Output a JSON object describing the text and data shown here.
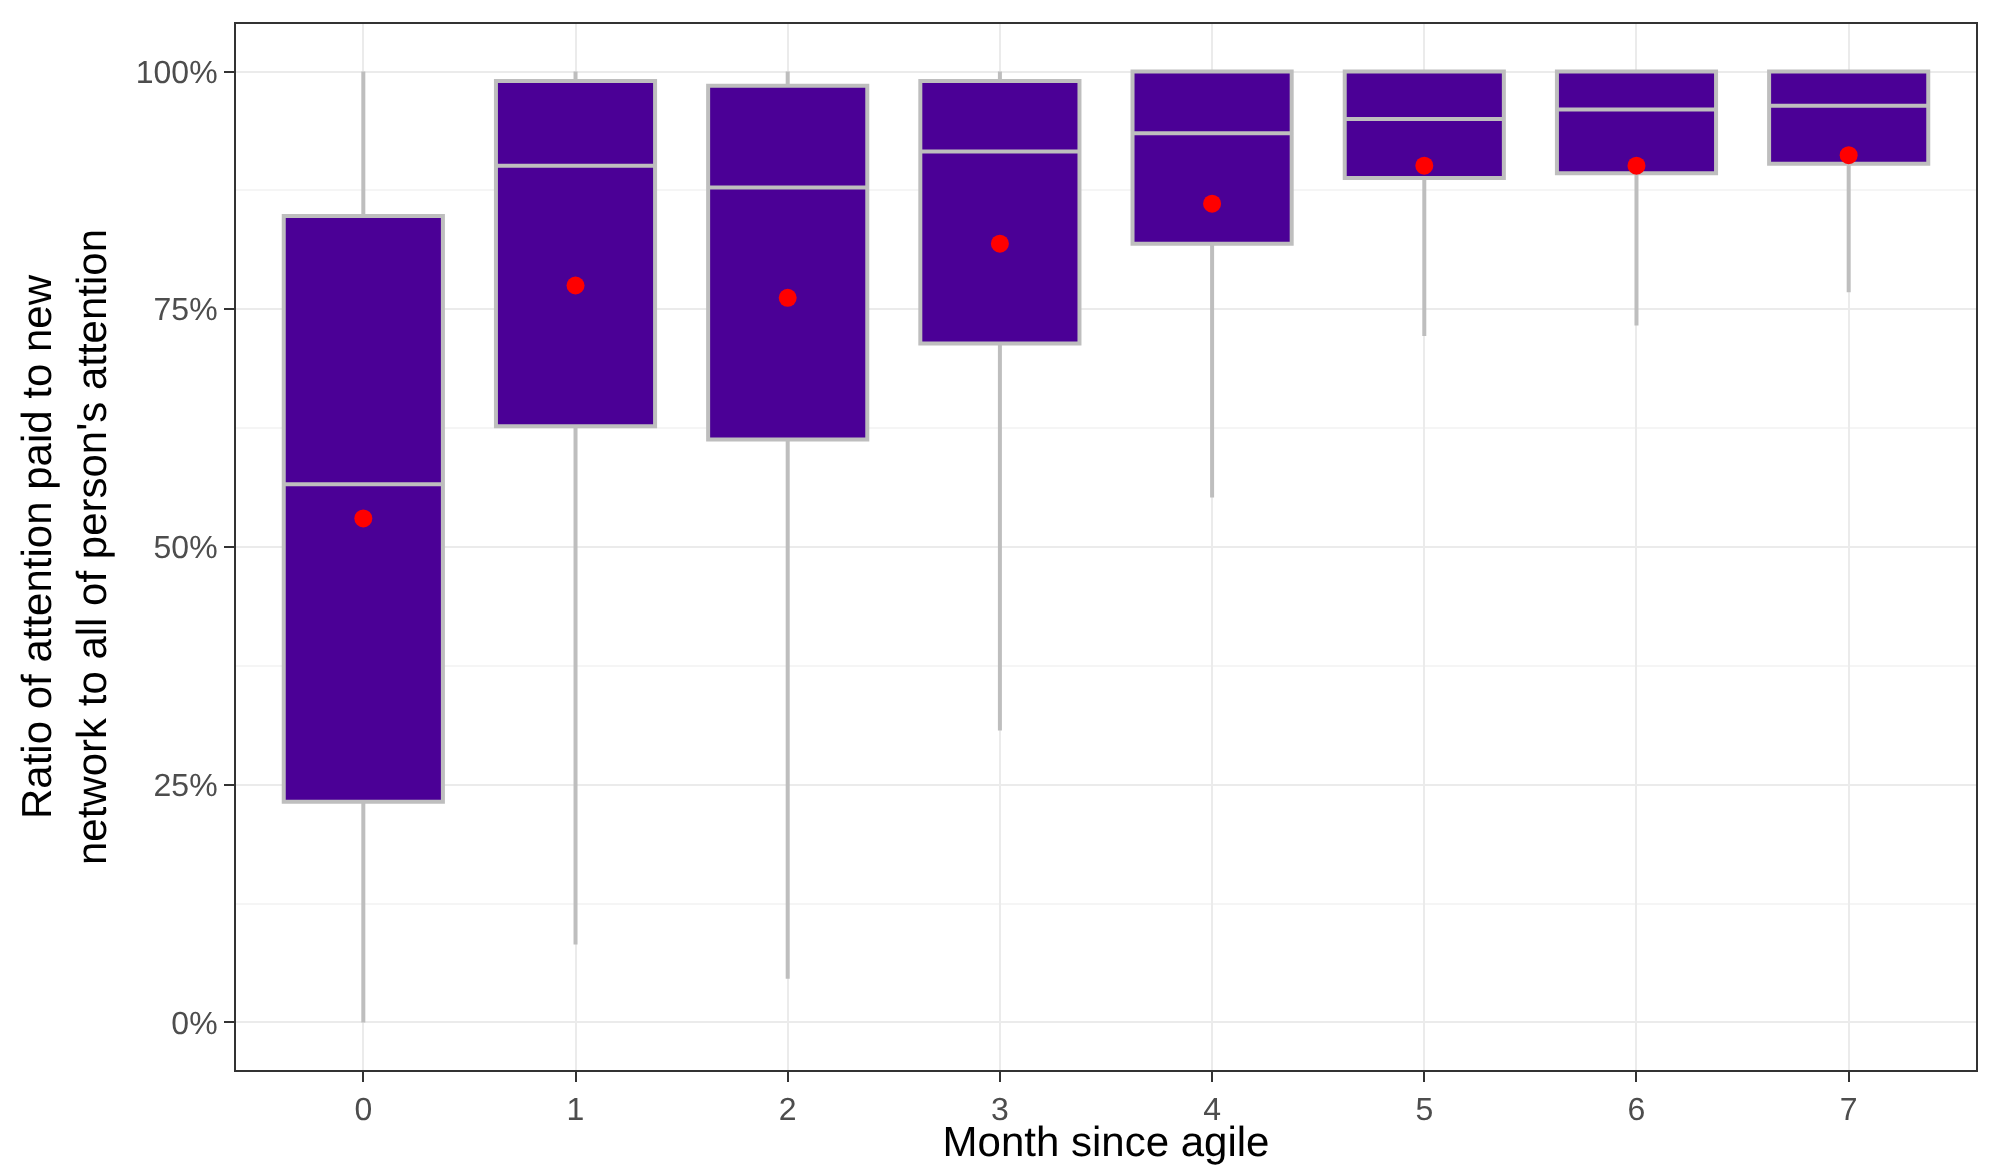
{
  "chart_data": {
    "type": "box",
    "xlabel": "Month since agile",
    "ylabel": "Ratio of attention paid to new\nnetwork to all of person's attention",
    "categories": [
      "0",
      "1",
      "2",
      "3",
      "4",
      "5",
      "6",
      "7"
    ],
    "series": [
      {
        "color": "#4b0096",
        "boxes": [
          {
            "low": 0,
            "q1": 23.2,
            "median": 56.6,
            "q3": 84.8,
            "high": 100
          },
          {
            "low": 8.2,
            "q1": 62.7,
            "median": 90.1,
            "q3": 99,
            "high": 100
          },
          {
            "low": 4.6,
            "q1": 61.3,
            "median": 87.8,
            "q3": 98.5,
            "high": 100
          },
          {
            "low": 30.7,
            "q1": 71.4,
            "median": 91.6,
            "q3": 99,
            "high": 100
          },
          {
            "low": 55.2,
            "q1": 81.9,
            "median": 93.5,
            "q3": 100,
            "high": 100
          },
          {
            "low": 72.2,
            "q1": 88.8,
            "median": 95,
            "q3": 100,
            "high": 100
          },
          {
            "low": 73.3,
            "q1": 89.3,
            "median": 96,
            "q3": 100,
            "high": 100
          },
          {
            "low": 76.8,
            "q1": 90.3,
            "median": 96.4,
            "q3": 100,
            "high": 100
          }
        ]
      },
      {
        "type": "scatter",
        "color": "#ff0000",
        "x": [
          "0",
          "1",
          "2",
          "3",
          "4",
          "5",
          "6",
          "7"
        ],
        "values": [
          53,
          77.5,
          76.2,
          81.9,
          86.1,
          90.1,
          90.1,
          91.2
        ]
      }
    ],
    "ylim": [
      -5,
      105
    ],
    "yticks": [
      {
        "value": 0,
        "label": "0%"
      },
      {
        "value": 25,
        "label": "25%"
      },
      {
        "value": 50,
        "label": "50%"
      },
      {
        "value": 75,
        "label": "75%"
      },
      {
        "value": 100,
        "label": "100%"
      }
    ],
    "grid": true,
    "marker": "circle"
  }
}
